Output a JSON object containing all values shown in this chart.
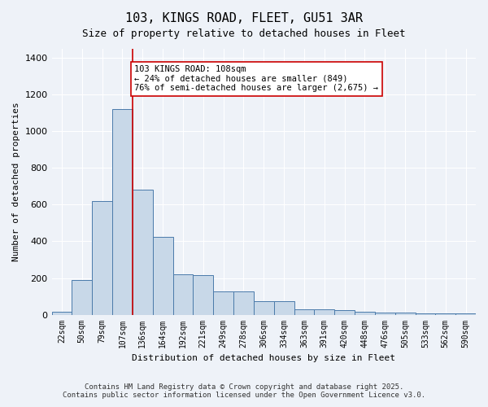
{
  "title_line1": "103, KINGS ROAD, FLEET, GU51 3AR",
  "title_line2": "Size of property relative to detached houses in Fleet",
  "xlabel": "Distribution of detached houses by size in Fleet",
  "ylabel": "Number of detached properties",
  "bar_labels": [
    "22sqm",
    "50sqm",
    "79sqm",
    "107sqm",
    "136sqm",
    "164sqm",
    "192sqm",
    "221sqm",
    "249sqm",
    "278sqm",
    "306sqm",
    "334sqm",
    "363sqm",
    "391sqm",
    "420sqm",
    "448sqm",
    "476sqm",
    "505sqm",
    "533sqm",
    "562sqm",
    "590sqm"
  ],
  "bar_values": [
    15,
    190,
    620,
    1120,
    680,
    425,
    220,
    215,
    125,
    125,
    75,
    75,
    30,
    30,
    25,
    15,
    10,
    10,
    5,
    5,
    5
  ],
  "bar_color": "#c8d8e8",
  "bar_edge_color": "#4a7aaa",
  "reference_line_x": 3,
  "reference_line_label": "103 KINGS ROAD: 108sqm",
  "annotation_line1": "103 KINGS ROAD: 108sqm",
  "annotation_line2": "← 24% of detached houses are smaller (849)",
  "annotation_line3": "76% of semi-detached houses are larger (2,675) →",
  "annotation_box_color": "#ffffff",
  "annotation_box_edge": "#cc0000",
  "vline_color": "#cc0000",
  "ylim": [
    0,
    1450
  ],
  "background_color": "#eef2f8",
  "grid_color": "#ffffff",
  "footer1": "Contains HM Land Registry data © Crown copyright and database right 2025.",
  "footer2": "Contains public sector information licensed under the Open Government Licence v3.0."
}
